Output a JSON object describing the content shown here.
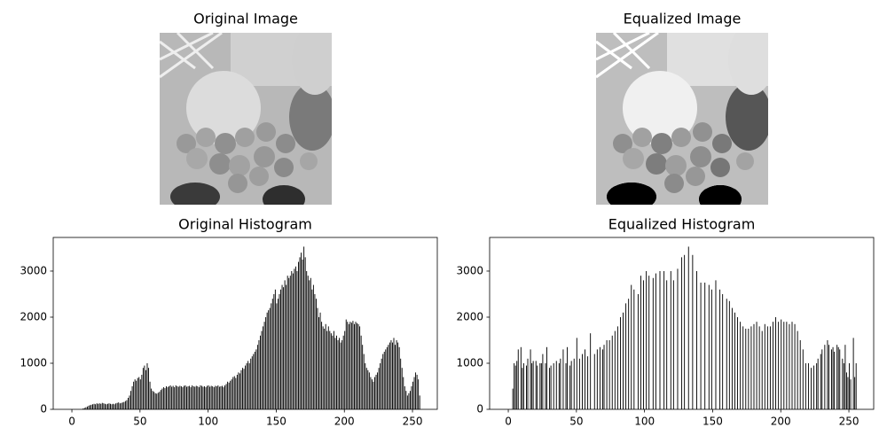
{
  "images": [
    {
      "title": "Original Image"
    },
    {
      "title": "Equalized Image"
    }
  ],
  "chart_data": [
    {
      "type": "histogram",
      "title": "Original Histogram",
      "color": "#000000",
      "bins": [
        0,
        1,
        2,
        3,
        4,
        5,
        6,
        7,
        8,
        9,
        10,
        11,
        12,
        13,
        14,
        15,
        16,
        17,
        18,
        19,
        20,
        21,
        22,
        23,
        24,
        25,
        26,
        27,
        28,
        29,
        30,
        31,
        32,
        33,
        34,
        35,
        36,
        37,
        38,
        39,
        40,
        41,
        42,
        43,
        44,
        45,
        46,
        47,
        48,
        49,
        50,
        51,
        52,
        53,
        54,
        55,
        56,
        57,
        58,
        59,
        60,
        61,
        62,
        63,
        64,
        65,
        66,
        67,
        68,
        69,
        70,
        71,
        72,
        73,
        74,
        75,
        76,
        77,
        78,
        79,
        80,
        81,
        82,
        83,
        84,
        85,
        86,
        87,
        88,
        89,
        90,
        91,
        92,
        93,
        94,
        95,
        96,
        97,
        98,
        99,
        100,
        101,
        102,
        103,
        104,
        105,
        106,
        107,
        108,
        109,
        110,
        111,
        112,
        113,
        114,
        115,
        116,
        117,
        118,
        119,
        120,
        121,
        122,
        123,
        124,
        125,
        126,
        127,
        128,
        129,
        130,
        131,
        132,
        133,
        134,
        135,
        136,
        137,
        138,
        139,
        140,
        141,
        142,
        143,
        144,
        145,
        146,
        147,
        148,
        149,
        150,
        151,
        152,
        153,
        154,
        155,
        156,
        157,
        158,
        159,
        160,
        161,
        162,
        163,
        164,
        165,
        166,
        167,
        168,
        169,
        170,
        171,
        172,
        173,
        174,
        175,
        176,
        177,
        178,
        179,
        180,
        181,
        182,
        183,
        184,
        185,
        186,
        187,
        188,
        189,
        190,
        191,
        192,
        193,
        194,
        195,
        196,
        197,
        198,
        199,
        200,
        201,
        202,
        203,
        204,
        205,
        206,
        207,
        208,
        209,
        210,
        211,
        212,
        213,
        214,
        215,
        216,
        217,
        218,
        219,
        220,
        221,
        222,
        223,
        224,
        225,
        226,
        227,
        228,
        229,
        230,
        231,
        232,
        233,
        234,
        235,
        236,
        237,
        238,
        239,
        240,
        241,
        242,
        243,
        244,
        245,
        246,
        247,
        248,
        249,
        250,
        251,
        252,
        253,
        254,
        255,
        256
      ],
      "values": [
        0,
        0,
        0,
        0,
        0,
        0,
        0,
        0,
        20,
        30,
        45,
        60,
        80,
        90,
        100,
        110,
        120,
        110,
        130,
        120,
        130,
        120,
        140,
        130,
        120,
        110,
        120,
        130,
        120,
        110,
        120,
        110,
        130,
        140,
        150,
        130,
        140,
        150,
        160,
        180,
        200,
        250,
        300,
        400,
        500,
        600,
        650,
        620,
        680,
        700,
        650,
        750,
        900,
        950,
        850,
        1000,
        900,
        600,
        450,
        400,
        380,
        350,
        340,
        360,
        380,
        420,
        450,
        480,
        460,
        500,
        480,
        500,
        520,
        490,
        510,
        480,
        520,
        500,
        490,
        510,
        500,
        480,
        510,
        520,
        490,
        500,
        510,
        480,
        520,
        500,
        490,
        510,
        500,
        480,
        520,
        510,
        490,
        500,
        480,
        510,
        520,
        490,
        510,
        500,
        480,
        510,
        500,
        520,
        490,
        500,
        510,
        480,
        520,
        550,
        600,
        580,
        620,
        650,
        700,
        720,
        680,
        750,
        800,
        780,
        850,
        900,
        880,
        950,
        1000,
        1050,
        1000,
        1100,
        1150,
        1200,
        1250,
        1300,
        1400,
        1500,
        1600,
        1700,
        1800,
        1900,
        2000,
        2100,
        2150,
        2200,
        2300,
        2400,
        2500,
        2600,
        2300,
        2400,
        2500,
        2600,
        2700,
        2650,
        2800,
        2700,
        2900,
        2850,
        2900,
        3000,
        2950,
        3050,
        3100,
        3000,
        3200,
        3300,
        3400,
        3250,
        3530,
        3300,
        3000,
        2900,
        2800,
        2850,
        2600,
        2700,
        2500,
        2400,
        2200,
        2000,
        2100,
        1900,
        1800,
        1750,
        1850,
        1700,
        1800,
        1700,
        1650,
        1600,
        1700,
        1550,
        1600,
        1500,
        1550,
        1450,
        1500,
        1600,
        1700,
        1950,
        1900,
        1850,
        1900,
        1880,
        1920,
        1850,
        1900,
        1870,
        1850,
        1800,
        1600,
        1400,
        1200,
        1000,
        900,
        850,
        800,
        700,
        650,
        600,
        700,
        750,
        800,
        900,
        1000,
        1100,
        1200,
        1250,
        1300,
        1350,
        1400,
        1450,
        1500,
        1450,
        1550,
        1400,
        1500,
        1450,
        1350,
        1100,
        900,
        700,
        500,
        400,
        300,
        350,
        400,
        500,
        600,
        700,
        800,
        750,
        650,
        300
      ],
      "xlim": [
        -13.7,
        268.2
      ],
      "ylim": [
        0,
        3730
      ],
      "xticks": [
        0,
        50,
        100,
        150,
        200,
        250
      ],
      "yticks": [
        0,
        1000,
        2000,
        3000
      ]
    },
    {
      "type": "histogram",
      "title": "Equalized Histogram",
      "color": "#000000",
      "bins": [
        0,
        1,
        2,
        3,
        4,
        5,
        6,
        7,
        8,
        9,
        10,
        11,
        12,
        13,
        14,
        15,
        16,
        17,
        18,
        19,
        20,
        21,
        22,
        23,
        24,
        25,
        26,
        27,
        28,
        29,
        30,
        31,
        32,
        33,
        34,
        35,
        36,
        37,
        38,
        39,
        40,
        41,
        42,
        43,
        44,
        45,
        46,
        47,
        48,
        49,
        50,
        51,
        52,
        53,
        54,
        55,
        56,
        57,
        58,
        59,
        60,
        61,
        62,
        63,
        64,
        65,
        66,
        67,
        68,
        69,
        70,
        71,
        72,
        73,
        74,
        75,
        76,
        77,
        78,
        79,
        80,
        81,
        82,
        83,
        84,
        85,
        86,
        87,
        88,
        89,
        90,
        91,
        92,
        93,
        94,
        95,
        96,
        97,
        98,
        99,
        100,
        101,
        102,
        103,
        104,
        105,
        106,
        107,
        108,
        109,
        110,
        111,
        112,
        113,
        114,
        115,
        116,
        117,
        118,
        119,
        120,
        121,
        122,
        123,
        124,
        125,
        126,
        127,
        128,
        129,
        130,
        131,
        132,
        133,
        134,
        135,
        136,
        137,
        138,
        139,
        140,
        141,
        142,
        143,
        144,
        145,
        146,
        147,
        148,
        149,
        150,
        151,
        152,
        153,
        154,
        155,
        156,
        157,
        158,
        159,
        160,
        161,
        162,
        163,
        164,
        165,
        166,
        167,
        168,
        169,
        170,
        171,
        172,
        173,
        174,
        175,
        176,
        177,
        178,
        179,
        180,
        181,
        182,
        183,
        184,
        185,
        186,
        187,
        188,
        189,
        190,
        191,
        192,
        193,
        194,
        195,
        196,
        197,
        198,
        199,
        200,
        201,
        202,
        203,
        204,
        205,
        206,
        207,
        208,
        209,
        210,
        211,
        212,
        213,
        214,
        215,
        216,
        217,
        218,
        219,
        220,
        221,
        222,
        223,
        224,
        225,
        226,
        227,
        228,
        229,
        230,
        231,
        232,
        233,
        234,
        235,
        236,
        237,
        238,
        239,
        240,
        241,
        242,
        243,
        244,
        245,
        246,
        247,
        248,
        249,
        250,
        251,
        252,
        253,
        254,
        255,
        256
      ],
      "values": [
        0,
        0,
        0,
        450,
        1000,
        950,
        1050,
        1300,
        0,
        1350,
        900,
        1000,
        0,
        950,
        1100,
        0,
        1300,
        1000,
        1050,
        0,
        1050,
        950,
        0,
        1000,
        1000,
        1200,
        0,
        1000,
        1350,
        0,
        900,
        950,
        0,
        1000,
        0,
        1050,
        0,
        1000,
        1100,
        0,
        1300,
        0,
        1000,
        1350,
        0,
        950,
        1050,
        0,
        1100,
        0,
        1550,
        0,
        1100,
        0,
        1200,
        0,
        1300,
        0,
        1150,
        0,
        1650,
        0,
        0,
        1200,
        0,
        1300,
        0,
        1350,
        0,
        1300,
        1400,
        0,
        1500,
        0,
        1500,
        0,
        1600,
        0,
        1700,
        0,
        1800,
        0,
        2000,
        0,
        2100,
        0,
        2300,
        0,
        2400,
        0,
        2700,
        0,
        2600,
        0,
        0,
        2500,
        0,
        2900,
        0,
        2800,
        0,
        3000,
        0,
        2900,
        0,
        0,
        2850,
        0,
        2950,
        0,
        0,
        3000,
        0,
        0,
        3000,
        0,
        2800,
        0,
        0,
        3000,
        0,
        2800,
        0,
        0,
        3050,
        0,
        0,
        3300,
        0,
        3350,
        0,
        0,
        3530,
        0,
        0,
        3350,
        0,
        0,
        3000,
        0,
        0,
        2750,
        0,
        0,
        2750,
        0,
        0,
        2700,
        0,
        2600,
        0,
        0,
        2800,
        0,
        0,
        2600,
        0,
        2500,
        0,
        0,
        2400,
        0,
        2350,
        0,
        2200,
        0,
        2100,
        0,
        2000,
        0,
        1900,
        0,
        1800,
        0,
        1750,
        0,
        1750,
        0,
        1800,
        0,
        1850,
        0,
        1900,
        0,
        1800,
        0,
        1700,
        0,
        1850,
        0,
        1800,
        0,
        1800,
        0,
        1900,
        0,
        2000,
        0,
        1900,
        0,
        1950,
        0,
        1900,
        0,
        1900,
        0,
        1850,
        0,
        1900,
        0,
        1850,
        0,
        1700,
        0,
        1500,
        0,
        1300,
        0,
        1000,
        0,
        1000,
        0,
        900,
        0,
        950,
        0,
        1000,
        1100,
        0,
        1200,
        1300,
        0,
        1400,
        0,
        1500,
        1400,
        0,
        1300,
        1350,
        1250,
        0,
        1400,
        1350,
        1300,
        0,
        1100,
        1000,
        1400,
        800,
        700,
        1000,
        650,
        0,
        1550,
        700,
        1000
      ],
      "xlim": [
        -13.7,
        268.2
      ],
      "ylim": [
        0,
        3730
      ],
      "xticks": [
        0,
        50,
        100,
        150,
        200,
        250
      ],
      "yticks": [
        0,
        1000,
        2000,
        3000
      ]
    }
  ]
}
